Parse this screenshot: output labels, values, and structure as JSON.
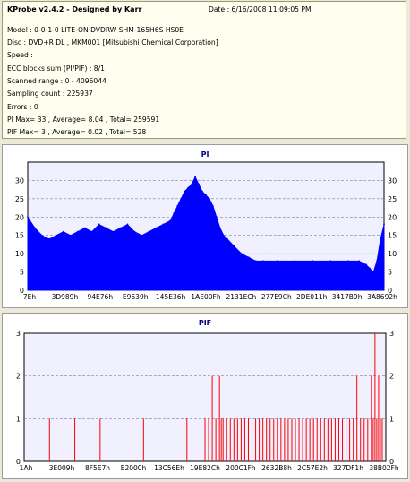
{
  "info": {
    "title": "KProbe v2.4.2 - Designed by Karr",
    "date": "Date : 6/16/2008 11:09:05 PM",
    "lines": [
      "Model : 0-0-1-0 LITE-ON DVDRW SHM-165H6S HS0E",
      "Disc : DVD+R DL , MKM001 [Mitsubishi Chemical Corporation]",
      "Speed :",
      "ECC blocks sum (PI/PIF) : 8/1",
      "Scanned range : 0 - 4096044",
      "Sampling count : 225937",
      "Errors : 0",
      "PI Max= 33 , Average= 8.04 , Total= 259591",
      "PIF Max= 3 , Average= 0.02 , Total= 528"
    ]
  },
  "colors": {
    "plot_bg": "#f0f0ff",
    "series": "#0000ff",
    "pif_series": "#ff0000",
    "title": "#000080",
    "panel_bg": "#ece9d8"
  },
  "chart_data": [
    {
      "type": "area",
      "title": "PI",
      "ylim": [
        0,
        35
      ],
      "yticks": [
        0,
        5,
        10,
        15,
        20,
        25,
        30
      ],
      "xticklabels": [
        "7Eh",
        "3D989h",
        "94E76h",
        "E9639h",
        "145E36h",
        "1AE00Fh",
        "2131ECh",
        "277E9Ch",
        "2DE011h",
        "3417B9h",
        "3A8692h"
      ],
      "x": [
        0,
        0.02,
        0.04,
        0.06,
        0.08,
        0.1,
        0.12,
        0.14,
        0.16,
        0.18,
        0.2,
        0.22,
        0.24,
        0.26,
        0.28,
        0.3,
        0.32,
        0.34,
        0.36,
        0.38,
        0.4,
        0.41,
        0.42,
        0.43,
        0.44,
        0.45,
        0.46,
        0.47,
        0.48,
        0.49,
        0.5,
        0.51,
        0.52,
        0.53,
        0.54,
        0.55,
        0.56,
        0.58,
        0.6,
        0.62,
        0.64,
        0.66,
        0.7,
        0.75,
        0.8,
        0.85,
        0.9,
        0.93,
        0.95,
        0.96,
        0.97,
        0.98,
        0.99,
        1.0
      ],
      "y": [
        20,
        17,
        15,
        14,
        15,
        16,
        15,
        16,
        17,
        16,
        18,
        17,
        16,
        17,
        18,
        16,
        15,
        16,
        17,
        18,
        19,
        21,
        23,
        25,
        27,
        28,
        29,
        31,
        29,
        27,
        26,
        25,
        23,
        20,
        17,
        15,
        14,
        12,
        10,
        9,
        8,
        8,
        8,
        8,
        8,
        8,
        8,
        8,
        7,
        6,
        5,
        8,
        14,
        18
      ]
    },
    {
      "type": "bar",
      "title": "PIF",
      "ylim": [
        0,
        3
      ],
      "yticks": [
        0,
        1,
        2,
        3
      ],
      "xticklabels": [
        "1Ah",
        "3E009h",
        "8F5E7h",
        "E2000h",
        "13C56Eh",
        "19E82Ch",
        "200C1Fh",
        "2632B8h",
        "2C57E2h",
        "327DF1h",
        "38B02Fh"
      ],
      "x": [
        0.07,
        0.14,
        0.21,
        0.33,
        0.45,
        0.5,
        0.51,
        0.52,
        0.53,
        0.54,
        0.545,
        0.55,
        0.56,
        0.57,
        0.58,
        0.59,
        0.6,
        0.61,
        0.62,
        0.63,
        0.64,
        0.65,
        0.66,
        0.67,
        0.68,
        0.69,
        0.7,
        0.71,
        0.72,
        0.73,
        0.74,
        0.75,
        0.76,
        0.77,
        0.78,
        0.79,
        0.8,
        0.81,
        0.82,
        0.83,
        0.84,
        0.85,
        0.86,
        0.87,
        0.88,
        0.89,
        0.9,
        0.91,
        0.92,
        0.93,
        0.94,
        0.95,
        0.96,
        0.965,
        0.97,
        0.975,
        0.98,
        0.985,
        0.99
      ],
      "y": [
        1,
        1,
        1,
        1,
        1,
        1,
        1,
        2,
        1,
        2,
        1,
        1,
        1,
        1,
        1,
        1,
        1,
        1,
        1,
        1,
        1,
        1,
        1,
        1,
        1,
        1,
        1,
        1,
        1,
        1,
        1,
        1,
        1,
        1,
        1,
        1,
        1,
        1,
        1,
        1,
        1,
        1,
        1,
        1,
        1,
        1,
        1,
        1,
        2,
        1,
        1,
        1,
        2,
        1,
        3,
        1,
        2,
        1,
        1
      ]
    }
  ]
}
